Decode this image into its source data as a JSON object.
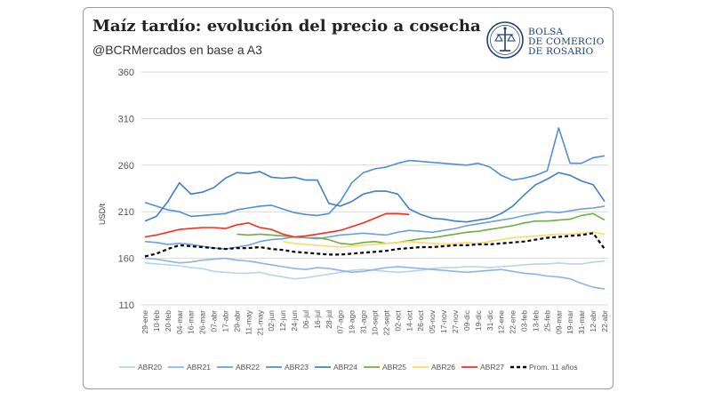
{
  "header": {
    "title": "Maíz tardío: evolución del precio a cosecha",
    "subtitle": "@BCRMercados en base a A3"
  },
  "logo": {
    "lines": [
      "BOLSA",
      "DE COMERCIO",
      "DE ROSARIO"
    ],
    "icon": "bcr-seal-icon",
    "color": "#1e3f73"
  },
  "chart_data": {
    "type": "line",
    "title": "",
    "ylabel": "USD/t",
    "xlabel": "",
    "ylim": [
      110,
      360
    ],
    "yticks": [
      110,
      160,
      210,
      260,
      310,
      360
    ],
    "grid": true,
    "legend_position": "bottom",
    "categories": [
      "29-ene",
      "10-feb",
      "20-feb",
      "04-mar",
      "16-mar",
      "26-mar",
      "07-abr",
      "17-abr",
      "29-abr",
      "11-may",
      "21-may",
      "02-jun",
      "12-jun",
      "24-jun",
      "06-jul",
      "16-jul",
      "28-jul",
      "07-ago",
      "19-ago",
      "31-ago",
      "10-sept",
      "22-sept",
      "02-oct",
      "14-oct",
      "26-oct",
      "05-nov",
      "17-nov",
      "27-nov",
      "09-dic",
      "19-dic",
      "31-dic",
      "12-ene",
      "22-ene",
      "03-feb",
      "13-feb",
      "25-feb",
      "09-mar",
      "19-mar",
      "31-mar",
      "12-abr",
      "22-abr"
    ],
    "series": [
      {
        "name": "ABR20",
        "color": "#b9d3ee",
        "dash": false,
        "values": [
          155,
          154,
          153,
          152,
          150,
          149,
          146,
          145,
          144,
          144,
          145,
          142,
          140,
          138,
          139,
          141,
          143,
          145,
          147,
          148,
          147,
          146,
          145,
          146,
          147,
          149,
          150,
          150,
          151,
          151,
          150,
          151,
          152,
          153,
          154,
          154,
          155,
          154,
          154,
          156,
          157
        ]
      },
      {
        "name": "ABR21",
        "color": "#8fb4e3",
        "dash": false,
        "values": [
          160,
          159,
          157,
          155,
          156,
          158,
          159,
          160,
          158,
          157,
          155,
          153,
          151,
          149,
          148,
          150,
          149,
          147,
          145,
          146,
          148,
          150,
          151,
          150,
          149,
          148,
          147,
          146,
          145,
          146,
          147,
          148,
          146,
          144,
          143,
          141,
          140,
          138,
          133,
          129,
          127
        ]
      },
      {
        "name": "ABR22",
        "color": "#6f9fdc",
        "dash": false,
        "values": [
          178,
          177,
          175,
          176,
          175,
          173,
          171,
          170,
          172,
          174,
          178,
          180,
          181,
          183,
          182,
          181,
          183,
          185,
          186,
          187,
          186,
          185,
          188,
          190,
          189,
          188,
          190,
          192,
          195,
          197,
          199,
          201,
          203,
          206,
          208,
          210,
          209,
          211,
          213,
          214,
          216
        ]
      },
      {
        "name": "ABR23",
        "color": "#4f8fd6",
        "dash": false,
        "values": [
          220,
          216,
          212,
          210,
          205,
          206,
          207,
          208,
          212,
          214,
          216,
          217,
          213,
          209,
          207,
          206,
          208,
          221,
          241,
          252,
          256,
          258,
          262,
          265,
          264,
          263,
          262,
          261,
          260,
          262,
          258,
          249,
          244,
          246,
          249,
          254,
          300,
          262,
          262,
          268,
          270
        ]
      },
      {
        "name": "ABR24",
        "color": "#3f7fc8",
        "dash": false,
        "values": [
          200,
          205,
          221,
          241,
          229,
          231,
          236,
          246,
          252,
          251,
          253,
          247,
          246,
          247,
          244,
          244,
          219,
          216,
          221,
          229,
          232,
          232,
          229,
          213,
          207,
          203,
          202,
          200,
          199,
          201,
          203,
          208,
          216,
          228,
          239,
          245,
          252,
          249,
          243,
          239,
          221
        ]
      },
      {
        "name": "ABR25",
        "color": "#70ad47",
        "dash": false,
        "values": [
          null,
          null,
          null,
          null,
          null,
          null,
          null,
          null,
          186,
          185,
          186,
          185,
          184,
          183,
          182,
          182,
          180,
          176,
          175,
          177,
          178,
          176,
          177,
          179,
          181,
          182,
          184,
          186,
          188,
          189,
          191,
          193,
          195,
          198,
          200,
          200,
          201,
          202,
          206,
          208,
          201
        ]
      },
      {
        "name": "ABR26",
        "color": "#ffd966",
        "dash": false,
        "values": [
          null,
          null,
          null,
          null,
          null,
          null,
          null,
          null,
          null,
          null,
          null,
          null,
          178,
          176,
          175,
          174,
          173,
          172,
          173,
          174,
          175,
          176,
          177,
          178,
          177,
          176,
          175,
          176,
          177,
          176,
          178,
          180,
          182,
          183,
          184,
          185,
          186,
          186,
          187,
          188,
          186
        ]
      },
      {
        "name": "ABR27",
        "color": "#ff2a1a",
        "dash": false,
        "values": [
          183,
          185,
          188,
          191,
          192,
          193,
          193,
          192,
          196,
          198,
          193,
          191,
          186,
          183,
          184,
          186,
          188,
          190,
          194,
          198,
          203,
          208,
          208,
          207,
          null,
          null,
          null,
          null,
          null,
          null,
          null,
          null,
          null,
          null,
          null,
          null,
          null,
          null,
          null,
          null,
          null
        ]
      },
      {
        "name": "Prom. 11 años",
        "color": "#000000",
        "dash": true,
        "values": [
          162,
          165,
          170,
          174,
          173,
          172,
          171,
          170,
          171,
          171,
          172,
          170,
          169,
          167,
          166,
          165,
          164,
          164,
          165,
          166,
          167,
          168,
          170,
          171,
          172,
          172,
          173,
          174,
          174,
          175,
          175,
          176,
          177,
          178,
          180,
          182,
          183,
          184,
          185,
          187,
          170
        ]
      }
    ]
  }
}
